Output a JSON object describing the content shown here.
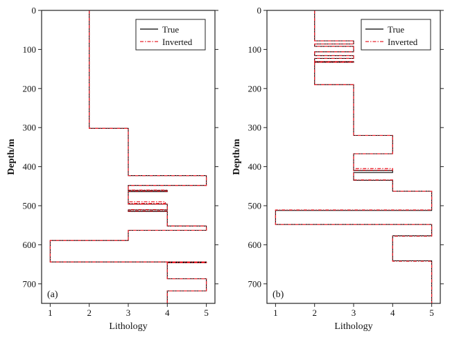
{
  "chart_data": [
    {
      "type": "line",
      "panel_label": "(a)",
      "xlabel": "Lithology",
      "ylabel": "Depth/m",
      "xlim": [
        0.78,
        5.22
      ],
      "ylim": [
        0,
        750
      ],
      "xticks": [
        1,
        2,
        3,
        4,
        5
      ],
      "yticks": [
        0,
        100,
        200,
        300,
        400,
        500,
        600,
        700
      ],
      "legend": {
        "placement": "top-right",
        "entries": [
          "True",
          "Inverted"
        ]
      },
      "series": [
        {
          "name": "True",
          "color": "#000000",
          "style": "solid",
          "layers": [
            [
              0,
              302,
              2
            ],
            [
              302,
              423,
              3
            ],
            [
              423,
              448,
              5
            ],
            [
              448,
              461,
              3
            ],
            [
              461,
              464,
              4
            ],
            [
              464,
              496,
              3
            ],
            [
              496,
              511,
              4
            ],
            [
              511,
              515,
              3
            ],
            [
              515,
              552,
              4
            ],
            [
              552,
              563,
              5
            ],
            [
              563,
              589,
              3
            ],
            [
              589,
              644,
              1
            ],
            [
              644,
              646,
              5
            ],
            [
              646,
              687,
              4
            ],
            [
              687,
              718,
              5
            ],
            [
              718,
              750,
              4
            ]
          ]
        },
        {
          "name": "Inverted",
          "color": "#e8202a",
          "style": "dashdot",
          "layers": [
            [
              0,
              302,
              2
            ],
            [
              302,
              423,
              3
            ],
            [
              423,
              448,
              5
            ],
            [
              448,
              460,
              3
            ],
            [
              460,
              463,
              4
            ],
            [
              463,
              490,
              3
            ],
            [
              490,
              494,
              3.95
            ],
            [
              494,
              496,
              3
            ],
            [
              496,
              510,
              4
            ],
            [
              510,
              514,
              3
            ],
            [
              514,
              552,
              4
            ],
            [
              552,
              563,
              5
            ],
            [
              563,
              589,
              3
            ],
            [
              589,
              644,
              1
            ],
            [
              644,
              646,
              5
            ],
            [
              646,
              687,
              4
            ],
            [
              687,
              718,
              5
            ],
            [
              718,
              750,
              4
            ]
          ]
        }
      ]
    },
    {
      "type": "line",
      "panel_label": "(b)",
      "xlabel": "Lithology",
      "ylabel": "Depth/m",
      "xlim": [
        0.78,
        5.22
      ],
      "ylim": [
        0,
        750
      ],
      "xticks": [
        1,
        2,
        3,
        4,
        5
      ],
      "yticks": [
        0,
        100,
        200,
        300,
        400,
        500,
        600,
        700
      ],
      "legend": {
        "placement": "top-right",
        "entries": [
          "True",
          "Inverted"
        ]
      },
      "series": [
        {
          "name": "True",
          "color": "#000000",
          "style": "solid",
          "layers": [
            [
              0,
              78,
              2
            ],
            [
              78,
              86,
              3
            ],
            [
              86,
              92,
              2
            ],
            [
              92,
              106,
              3
            ],
            [
              106,
              116,
              2
            ],
            [
              116,
              123,
              3
            ],
            [
              123,
              131,
              2
            ],
            [
              131,
              133,
              3
            ],
            [
              133,
              190,
              2
            ],
            [
              190,
              320,
              3
            ],
            [
              320,
              367,
              4
            ],
            [
              367,
              410,
              3
            ],
            [
              410,
              415,
              4
            ],
            [
              415,
              435,
              3
            ],
            [
              435,
              463,
              4
            ],
            [
              463,
              512,
              5
            ],
            [
              512,
              548,
              1
            ],
            [
              548,
              577,
              5
            ],
            [
              577,
              641,
              4
            ],
            [
              641,
              750,
              5
            ]
          ]
        },
        {
          "name": "Inverted",
          "color": "#e8202a",
          "style": "dashdot",
          "layers": [
            [
              0,
              78,
              2
            ],
            [
              78,
              86,
              3
            ],
            [
              86,
              92,
              2
            ],
            [
              92,
              106,
              3
            ],
            [
              106,
              116,
              2
            ],
            [
              116,
              123,
              3
            ],
            [
              123,
              131,
              2
            ],
            [
              131,
              133,
              3
            ],
            [
              133,
              190,
              2
            ],
            [
              190,
              320,
              3
            ],
            [
              320,
              367,
              4
            ],
            [
              367,
              405,
              3
            ],
            [
              405,
              409,
              4
            ],
            [
              409,
              434,
              3
            ],
            [
              434,
              463,
              4
            ],
            [
              463,
              511,
              5
            ],
            [
              511,
              548,
              1
            ],
            [
              548,
              578,
              5
            ],
            [
              578,
              642,
              4
            ],
            [
              642,
              750,
              5
            ]
          ]
        }
      ]
    }
  ]
}
